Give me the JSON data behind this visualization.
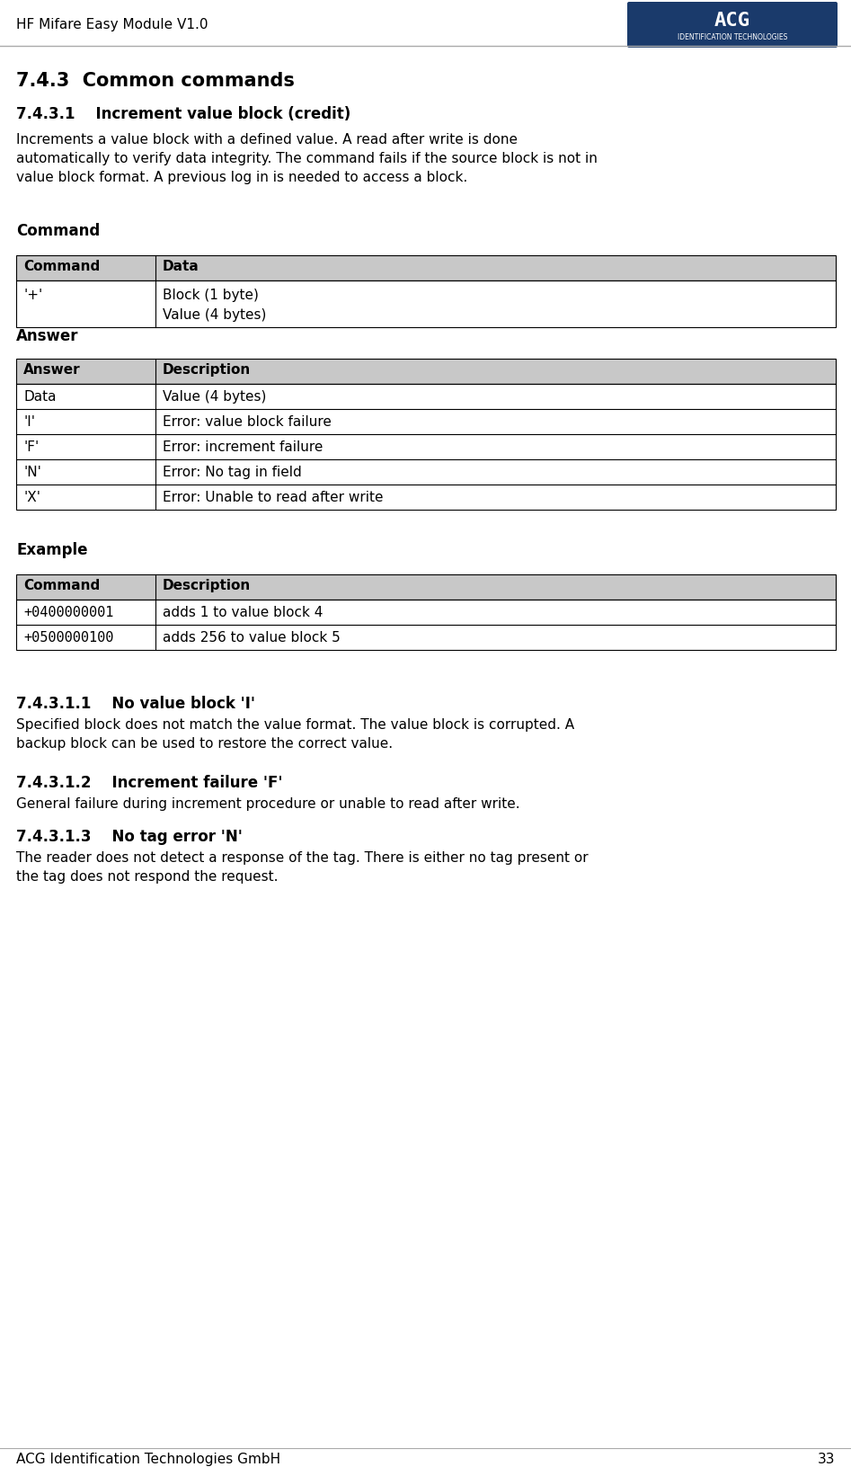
{
  "page_title": "HF Mifare Easy Module V1.0",
  "page_number": "33",
  "footer_text": "ACG Identification Technologies GmbH",
  "acg_logo_color": "#1a3a6b",
  "section_title": "7.4.3  Common commands",
  "subsection_title": "7.4.3.1    Increment value block (credit)",
  "intro_text": "Increments a value block with a defined value. A read after write is done\nautomatically to verify data integrity. The command fails if the source block is not in\nvalue block format. A previous log in is needed to access a block.",
  "cmd_section_label": "Command",
  "cmd_table_headers": [
    "Command",
    "Data"
  ],
  "cmd_table_rows": [
    [
      "'+'",
      "Block (1 byte)\nValue (4 bytes)"
    ]
  ],
  "ans_section_label": "Answer",
  "ans_table_headers": [
    "Answer",
    "Description"
  ],
  "ans_table_rows": [
    [
      "Data",
      "Value (4 bytes)"
    ],
    [
      "'I'",
      "Error: value block failure"
    ],
    [
      "'F'",
      "Error: increment failure"
    ],
    [
      "'N'",
      "Error: No tag in field"
    ],
    [
      "'X'",
      "Error: Unable to read after write"
    ]
  ],
  "ex_section_label": "Example",
  "ex_table_headers": [
    "Command",
    "Description"
  ],
  "ex_table_rows": [
    [
      "+0400000001",
      "adds 1 to value block 4"
    ],
    [
      "+0500000100",
      "adds 256 to value block 5"
    ]
  ],
  "sub1_title": "7.4.3.1.1    No value block 'I'",
  "sub1_text": "Specified block does not match the value format. The value block is corrupted. A\nbackup block can be used to restore the correct value.",
  "sub2_title": "7.4.3.1.2    Increment failure 'F'",
  "sub2_text": "General failure during increment procedure or unable to read after write.",
  "sub3_title": "7.4.3.1.3    No tag error 'N'",
  "sub3_text": "The reader does not detect a response of the tag. There is either no tag present or\nthe tag does not respond the request.",
  "bg_color": "#ffffff",
  "text_color": "#000000",
  "header_bg": "#c8c8c8",
  "table_border": "#000000",
  "line_color": "#000000"
}
